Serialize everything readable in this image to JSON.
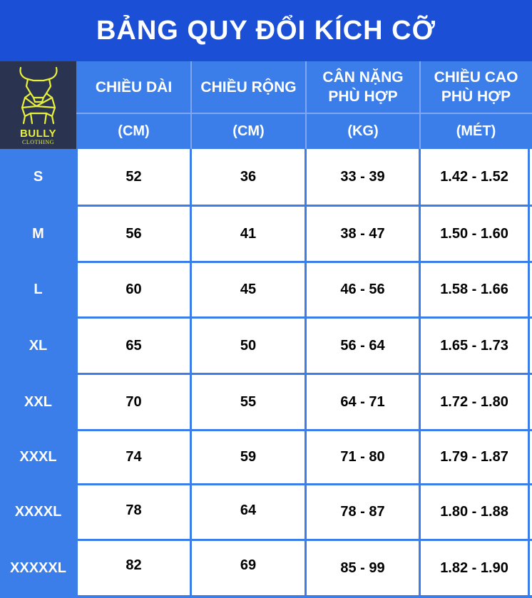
{
  "title": "BẢNG QUY ĐỔI KÍCH CỠ",
  "logo": {
    "brand": "BULLY",
    "sub": "CLOTHING",
    "icon": "bull-icon"
  },
  "headers": [
    {
      "name": "CHIỀU DÀI",
      "unit": "(CM)"
    },
    {
      "name": "CHIỀU RỘNG",
      "unit": "(CM)"
    },
    {
      "name": "CÂN NẶNG PHÙ HỢP",
      "unit": "(KG)"
    },
    {
      "name": "CHIỀU CAO PHÙ HỢP",
      "unit": "(MÉT)"
    }
  ],
  "rows": [
    {
      "size": "S",
      "length": "52",
      "width": "36",
      "weight": "33 - 39",
      "height": "1.42 - 1.52"
    },
    {
      "size": "M",
      "length": "56",
      "width": "41",
      "weight": "38 - 47",
      "height": "1.50 - 1.60"
    },
    {
      "size": "L",
      "length": "60",
      "width": "45",
      "weight": "46 - 56",
      "height": "1.58 - 1.66"
    },
    {
      "size": "XL",
      "length": "65",
      "width": "50",
      "weight": "56 - 64",
      "height": "1.65 - 1.73"
    },
    {
      "size": "XXL",
      "length": "70",
      "width": "55",
      "weight": "64 - 71",
      "height": "1.72 - 1.80"
    },
    {
      "size": "XXXL",
      "length": "74",
      "width": "59",
      "weight": "71 - 80",
      "height": "1.79 - 1.87"
    },
    {
      "size": "XXXXL",
      "length": "78",
      "width": "64",
      "weight": "78 - 87",
      "height": "1.80 - 1.88"
    },
    {
      "size": "XXXXXL",
      "length": "82",
      "width": "69",
      "weight": "85 - 99",
      "height": "1.82 - 1.90"
    }
  ],
  "colors": {
    "title_bg": "#1a4fd6",
    "header_bg": "#3b7de9",
    "logo_bg": "#2a3450",
    "logo_fg": "#e8f03a"
  }
}
